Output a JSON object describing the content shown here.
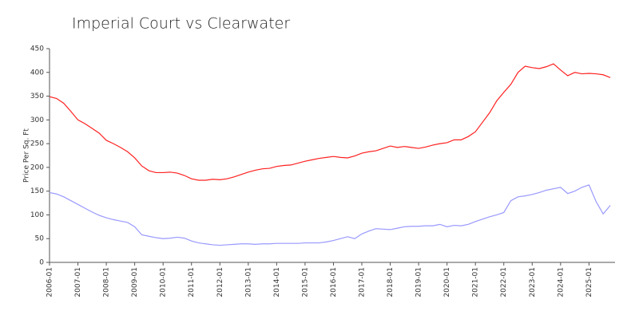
{
  "chart_data": {
    "type": "line",
    "title": "Imperial Court vs Clearwater",
    "y_label": "Price Per Sq. Ft",
    "x": [
      "2006-01",
      "2006-04",
      "2006-07",
      "2006-10",
      "2007-01",
      "2007-04",
      "2007-07",
      "2007-10",
      "2008-01",
      "2008-04",
      "2008-07",
      "2008-10",
      "2009-01",
      "2009-04",
      "2009-07",
      "2009-10",
      "2010-01",
      "2010-04",
      "2010-07",
      "2010-10",
      "2011-01",
      "2011-04",
      "2011-07",
      "2011-10",
      "2012-01",
      "2012-04",
      "2012-07",
      "2012-10",
      "2013-01",
      "2013-04",
      "2013-07",
      "2013-10",
      "2014-01",
      "2014-04",
      "2014-07",
      "2014-10",
      "2015-01",
      "2015-04",
      "2015-07",
      "2015-10",
      "2016-01",
      "2016-04",
      "2016-07",
      "2016-10",
      "2017-01",
      "2017-04",
      "2017-07",
      "2017-10",
      "2018-01",
      "2018-04",
      "2018-07",
      "2018-10",
      "2019-01",
      "2019-04",
      "2019-07",
      "2019-10",
      "2020-01",
      "2020-04",
      "2020-07",
      "2020-10",
      "2021-01",
      "2021-04",
      "2021-07",
      "2021-10",
      "2022-01",
      "2022-04",
      "2022-07",
      "2022-10",
      "2023-01",
      "2023-04",
      "2023-07",
      "2023-10",
      "2024-01",
      "2024-04",
      "2024-07",
      "2024-10",
      "2025-01",
      "2025-04",
      "2025-07",
      "2025-10"
    ],
    "series": [
      {
        "color": "#ff2020",
        "values": [
          349,
          345,
          335,
          318,
          300,
          292,
          282,
          272,
          257,
          250,
          242,
          233,
          220,
          203,
          193,
          189,
          189,
          190,
          188,
          183,
          176,
          173,
          173,
          175,
          174,
          176,
          180,
          185,
          190,
          194,
          197,
          198,
          202,
          204,
          205,
          209,
          213,
          216,
          219,
          221,
          223,
          221,
          220,
          224,
          230,
          233,
          235,
          240,
          245,
          242,
          244,
          242,
          240,
          243,
          247,
          250,
          252,
          258,
          258,
          265,
          275,
          295,
          315,
          340,
          358,
          375,
          400,
          413,
          410,
          408,
          412,
          418,
          405,
          393,
          400,
          397,
          398,
          397,
          395,
          389
        ]
      },
      {
        "color": "#9999ff",
        "values": [
          147,
          144,
          138,
          130,
          122,
          114,
          106,
          99,
          94,
          90,
          87,
          84,
          75,
          58,
          55,
          52,
          50,
          51,
          53,
          51,
          45,
          41,
          39,
          37,
          36,
          37,
          38,
          39,
          39,
          38,
          39,
          39,
          40,
          40,
          40,
          40,
          41,
          41,
          41,
          43,
          46,
          50,
          54,
          50,
          60,
          66,
          71,
          70,
          69,
          72,
          75,
          76,
          76,
          77,
          77,
          80,
          75,
          78,
          77,
          80,
          86,
          91,
          96,
          100,
          105,
          130,
          138,
          140,
          143,
          147,
          152,
          155,
          158,
          145,
          150,
          158,
          163,
          128,
          102,
          120
        ]
      }
    ],
    "xlim": [
      "2006-01",
      "2025-11"
    ],
    "xticks": [
      "2006-01",
      "2007-01",
      "2008-01",
      "2009-01",
      "2010-01",
      "2011-01",
      "2012-01",
      "2013-01",
      "2014-01",
      "2015-01",
      "2016-01",
      "2017-01",
      "2018-01",
      "2019-01",
      "2020-01",
      "2021-01",
      "2022-01",
      "2023-01",
      "2024-01",
      "2025-01"
    ],
    "ylim": [
      0,
      450
    ],
    "yticks": [
      0,
      50,
      100,
      150,
      200,
      250,
      300,
      350,
      400,
      450
    ],
    "grid": false
  }
}
